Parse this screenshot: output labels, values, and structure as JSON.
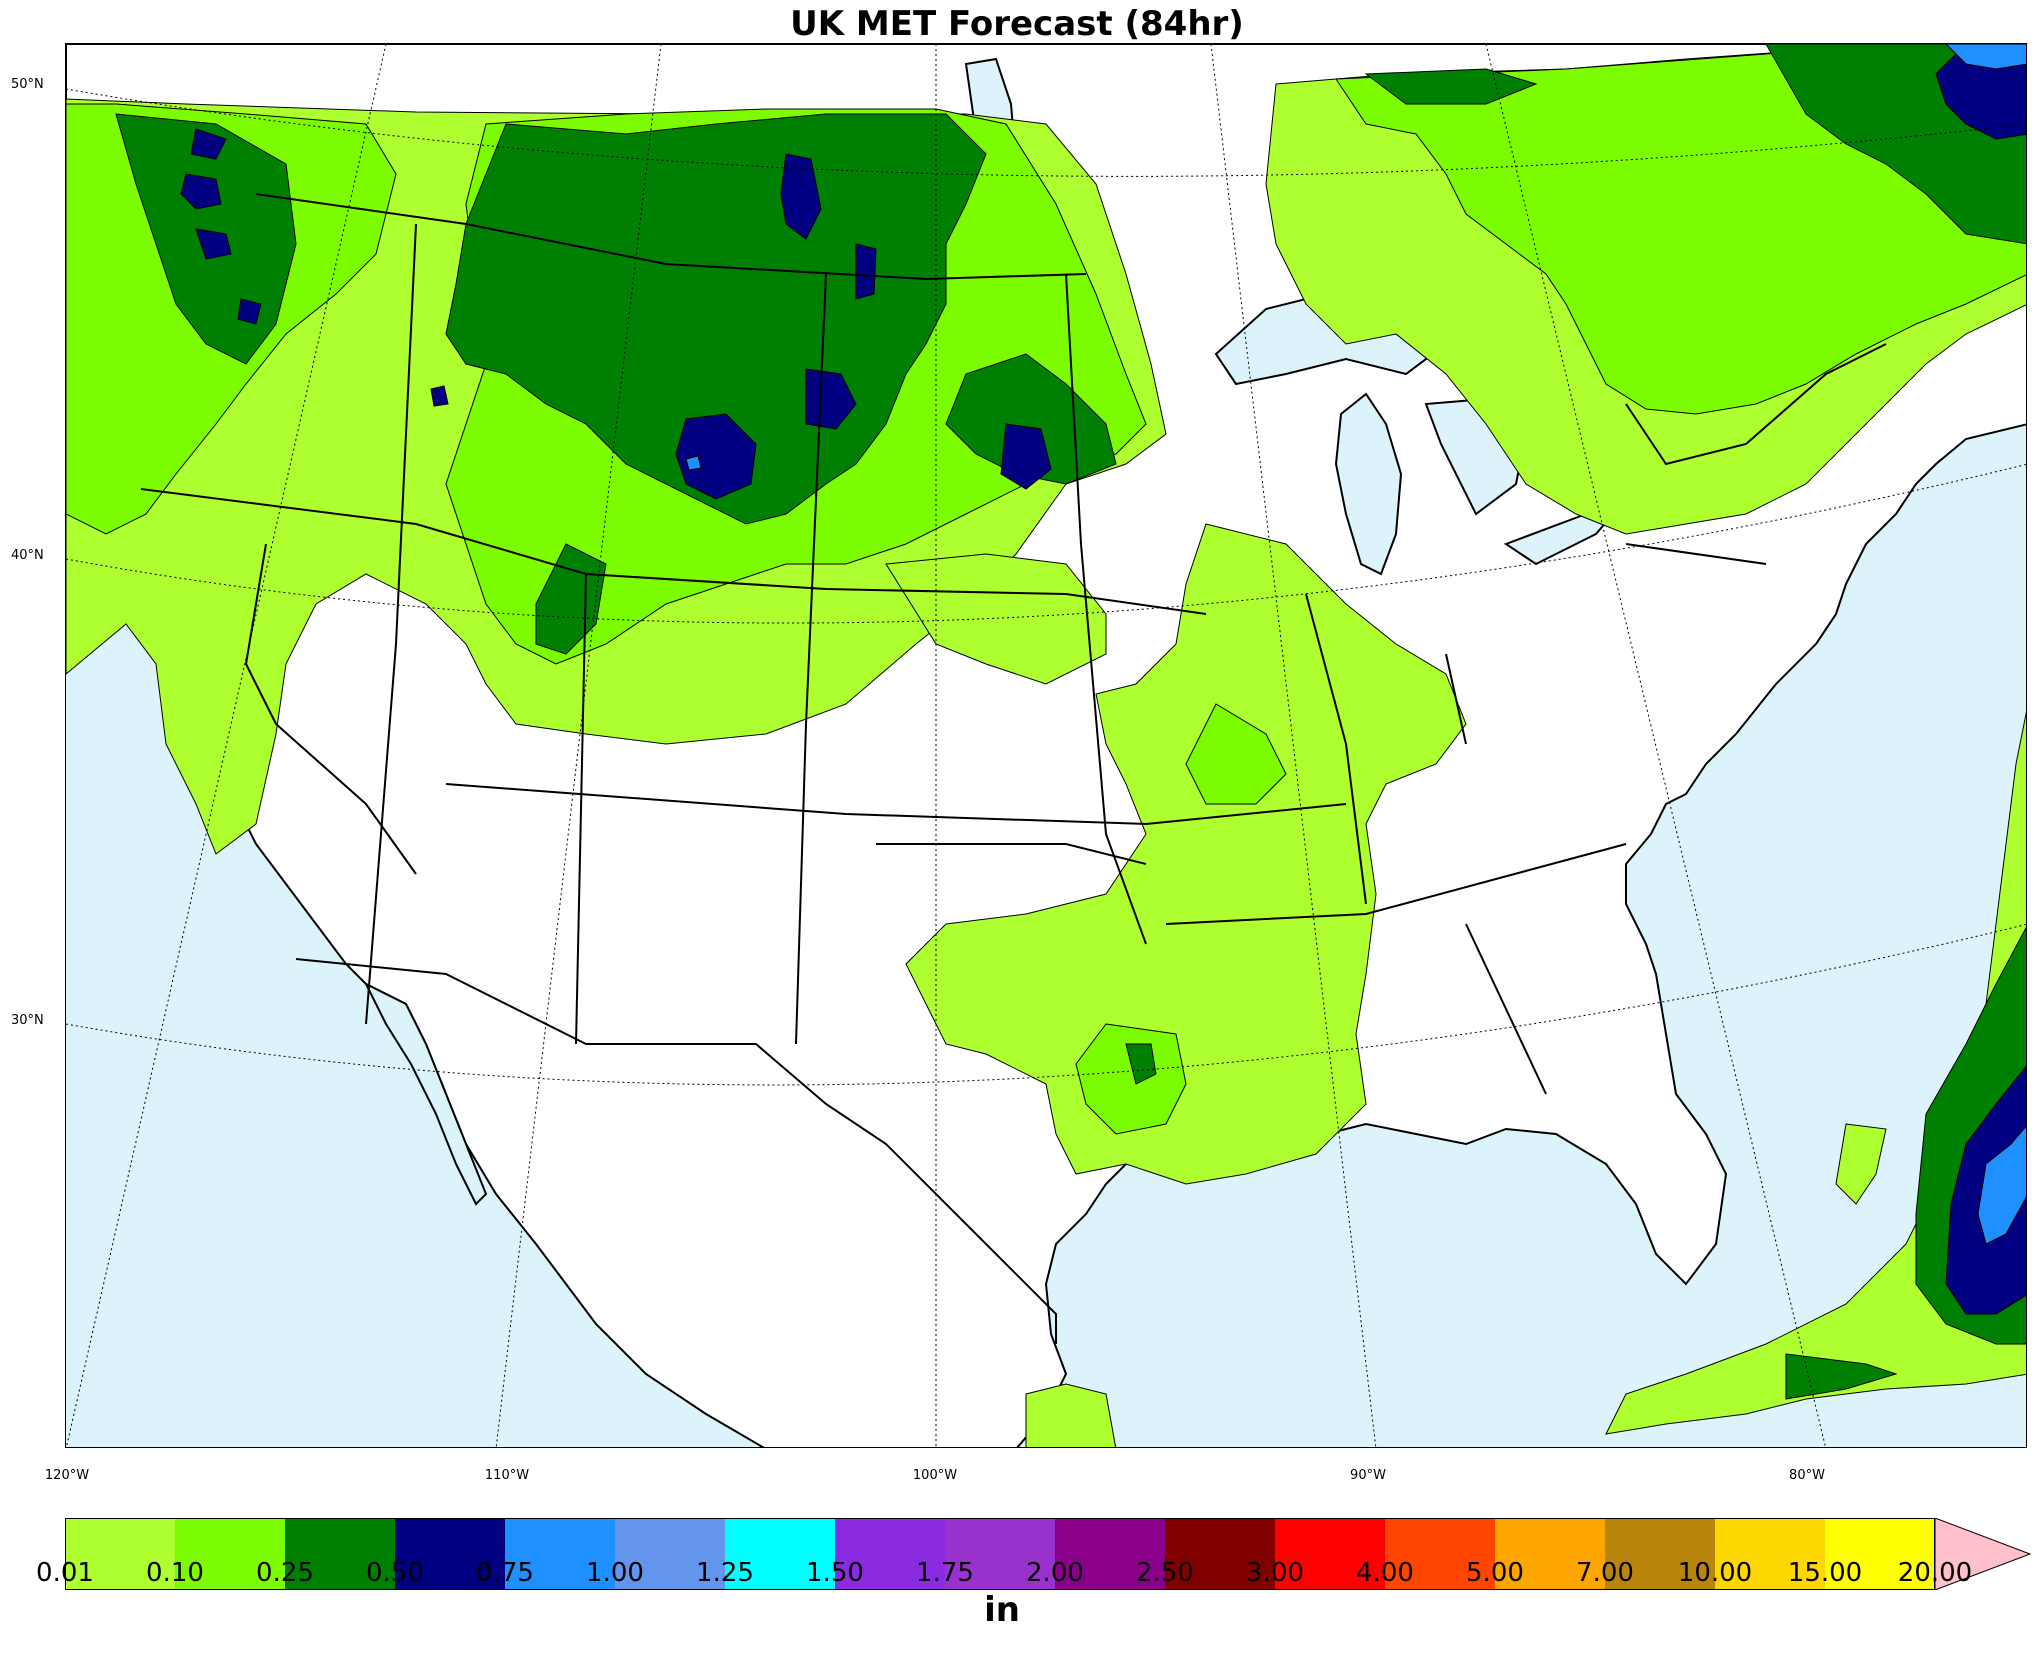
{
  "title": "UK MET Forecast (84hr)",
  "lat_labels": [
    "50°N",
    "40°N",
    "30°N"
  ],
  "lon_labels": [
    "120°W",
    "110°W",
    "100°W",
    "90°W",
    "80°W"
  ],
  "colorbar": {
    "units": "in",
    "ticks": [
      "0.01",
      "0.10",
      "0.25",
      "0.50",
      "0.75",
      "1.00",
      "1.25",
      "1.50",
      "1.75",
      "2.00",
      "2.50",
      "3.00",
      "4.00",
      "5.00",
      "7.00",
      "10.00",
      "15.00",
      "20.00"
    ],
    "colors": [
      "#adff2f",
      "#7cfc00",
      "#008000",
      "#000080",
      "#1e90ff",
      "#6495ed",
      "#00ffff",
      "#8a2be2",
      "#9932cc",
      "#8b008b",
      "#800000",
      "#ff0000",
      "#ff4500",
      "#ffa500",
      "#b8860b",
      "#ffd700",
      "#ffff00"
    ],
    "over_color": "#ffc0cb"
  },
  "map": {
    "ocean_color": "#dcf3fc",
    "land_color": "#ffffff"
  }
}
